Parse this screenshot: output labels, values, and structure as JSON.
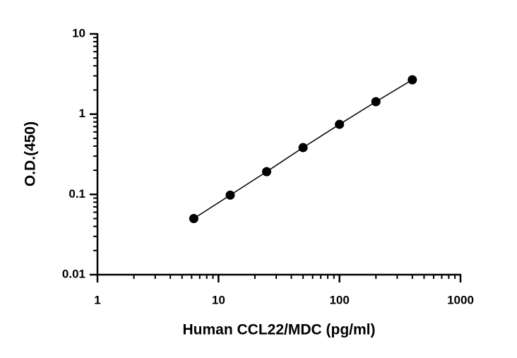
{
  "chart_data": {
    "type": "line",
    "markers": true,
    "color": "#000000",
    "x_label": "Human CCL22/MDC (pg/ml)",
    "y_label": "O.D.(450)",
    "x": [
      6.25,
      12.5,
      25,
      50,
      100,
      200,
      400
    ],
    "values": [
      0.05,
      0.098,
      0.192,
      0.383,
      0.747,
      1.43,
      2.68
    ],
    "xscale": "log",
    "yscale": "log",
    "xlim": [
      1,
      1000
    ],
    "ylim": [
      0.01,
      10
    ],
    "xticks": [
      1,
      10,
      100,
      1000
    ],
    "yticks": [
      0.01,
      0.1,
      1,
      10
    ]
  }
}
